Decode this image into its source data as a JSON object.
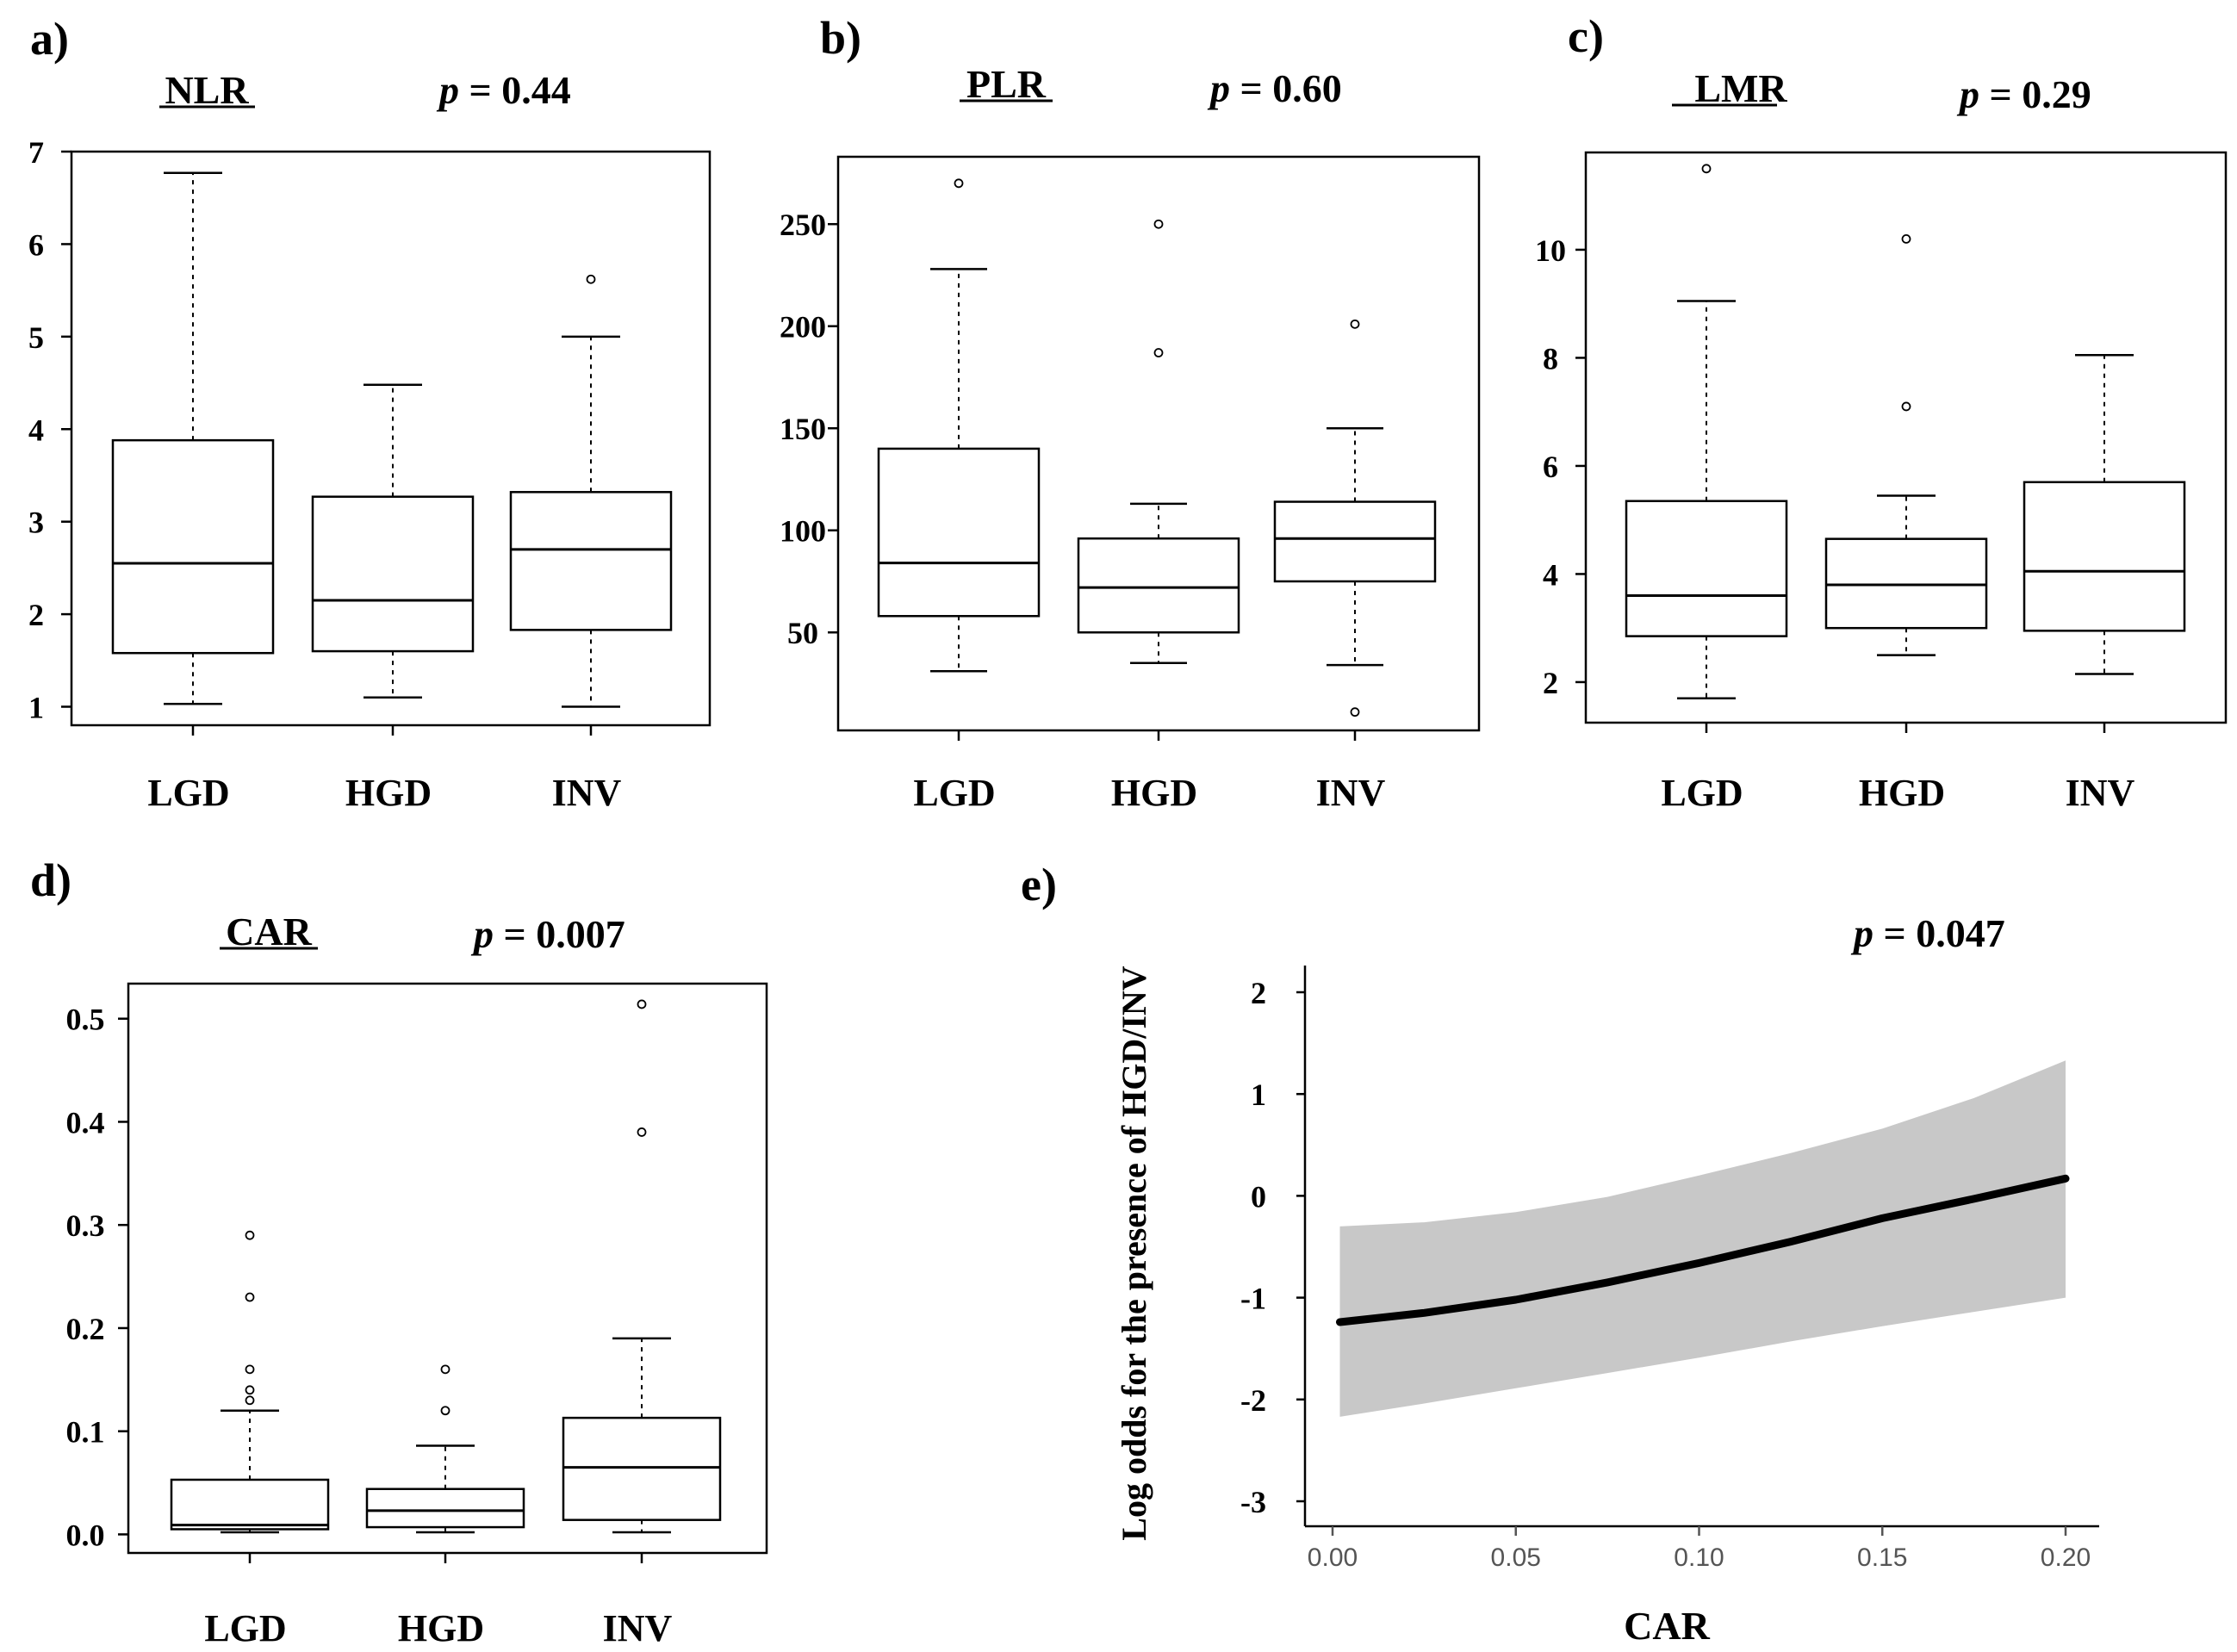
{
  "chart_data": [
    {
      "panel_label": "a)",
      "type": "boxplot",
      "title": "NLR",
      "p_value": "p = 0.44",
      "ylim": [
        0.8,
        7.0
      ],
      "yticks": [
        1,
        2,
        3,
        4,
        5,
        6,
        7
      ],
      "ytick_labels": [
        "1",
        "2",
        "3",
        "4",
        "5",
        "6",
        "7"
      ],
      "categories": [
        "LGD",
        "HGD",
        "INV"
      ],
      "boxes": [
        {
          "whislo": 1.03,
          "q1": 1.58,
          "med": 2.55,
          "q3": 3.88,
          "whishi": 6.77,
          "fliers": []
        },
        {
          "whislo": 1.1,
          "q1": 1.6,
          "med": 2.15,
          "q3": 3.27,
          "whishi": 4.48,
          "fliers": []
        },
        {
          "whislo": 1.0,
          "q1": 1.83,
          "med": 2.7,
          "q3": 3.32,
          "whishi": 5.0,
          "fliers": [
            5.62
          ]
        }
      ]
    },
    {
      "panel_label": "b)",
      "type": "boxplot",
      "title": "PLR",
      "p_value": "p = 0.60",
      "ylim": [
        2,
        283
      ],
      "yticks": [
        50,
        100,
        150,
        200,
        250
      ],
      "ytick_labels": [
        "50",
        "100",
        "150",
        "200",
        "250"
      ],
      "categories": [
        "LGD",
        "HGD",
        "INV"
      ],
      "boxes": [
        {
          "whislo": 31,
          "q1": 58,
          "med": 84,
          "q3": 140,
          "whishi": 228,
          "fliers": [
            270
          ]
        },
        {
          "whislo": 35,
          "q1": 50,
          "med": 72,
          "q3": 96,
          "whishi": 113,
          "fliers": [
            187,
            250
          ]
        },
        {
          "whislo": 34,
          "q1": 75,
          "med": 96,
          "q3": 114,
          "whishi": 150,
          "fliers": [
            11,
            201
          ]
        }
      ]
    },
    {
      "panel_label": "c)",
      "type": "boxplot",
      "title": "LMR",
      "p_value": "p = 0.29",
      "ylim": [
        1.25,
        11.8
      ],
      "yticks": [
        2,
        4,
        6,
        8,
        10
      ],
      "ytick_labels": [
        "2",
        "4",
        "6",
        "8",
        "10"
      ],
      "categories": [
        "LGD",
        "HGD",
        "INV"
      ],
      "boxes": [
        {
          "whislo": 1.7,
          "q1": 2.85,
          "med": 3.6,
          "q3": 5.35,
          "whishi": 9.05,
          "fliers": [
            11.5
          ]
        },
        {
          "whislo": 2.5,
          "q1": 3.0,
          "med": 3.8,
          "q3": 4.65,
          "whishi": 5.45,
          "fliers": [
            7.1,
            10.2
          ]
        },
        {
          "whislo": 2.15,
          "q1": 2.95,
          "med": 4.05,
          "q3": 5.7,
          "whishi": 8.05,
          "fliers": []
        }
      ]
    },
    {
      "panel_label": "d)",
      "type": "boxplot",
      "title": "CAR",
      "p_value": "p = 0.007",
      "ylim": [
        -0.018,
        0.534
      ],
      "yticks": [
        0.0,
        0.1,
        0.2,
        0.3,
        0.4,
        0.5
      ],
      "ytick_labels": [
        "0.0",
        "0.1",
        "0.2",
        "0.3",
        "0.4",
        "0.5"
      ],
      "categories": [
        "LGD",
        "HGD",
        "INV"
      ],
      "boxes": [
        {
          "whislo": 0.002,
          "q1": 0.005,
          "med": 0.009,
          "q3": 0.053,
          "whishi": 0.12,
          "fliers": [
            0.13,
            0.14,
            0.16,
            0.23,
            0.29
          ]
        },
        {
          "whislo": 0.002,
          "q1": 0.007,
          "med": 0.023,
          "q3": 0.044,
          "whishi": 0.086,
          "fliers": [
            0.12,
            0.16
          ]
        },
        {
          "whislo": 0.002,
          "q1": 0.014,
          "med": 0.065,
          "q3": 0.113,
          "whishi": 0.19,
          "fliers": [
            0.39,
            0.514
          ]
        }
      ]
    },
    {
      "panel_label": "e)",
      "type": "line",
      "title": "",
      "p_value": "p = 0.047",
      "xlabel": "CAR",
      "ylabel": "Log odds for the presence of HGD/INV",
      "xlim": [
        -0.014,
        0.21
      ],
      "ylim": [
        -3.25,
        2.2
      ],
      "xticks": [
        0.0,
        0.05,
        0.1,
        0.15,
        0.2
      ],
      "xtick_labels": [
        "0.00",
        "0.05",
        "0.10",
        "0.15",
        "0.20"
      ],
      "yticks": [
        -3,
        -2,
        -1,
        0,
        1,
        2
      ],
      "ytick_labels": [
        "-3",
        "-2",
        "-1",
        "0",
        "1",
        "2"
      ],
      "x": [
        0.002,
        0.025,
        0.05,
        0.075,
        0.1,
        0.125,
        0.15,
        0.175,
        0.2
      ],
      "fit": [
        -1.24,
        -1.15,
        -1.02,
        -0.85,
        -0.66,
        -0.45,
        -0.22,
        -0.03,
        0.17
      ],
      "lower": [
        -2.17,
        -2.04,
        -1.89,
        -1.74,
        -1.59,
        -1.43,
        -1.28,
        -1.14,
        -1.0
      ],
      "upper": [
        -0.3,
        -0.26,
        -0.16,
        -0.01,
        0.2,
        0.42,
        0.66,
        0.96,
        1.33
      ]
    }
  ]
}
